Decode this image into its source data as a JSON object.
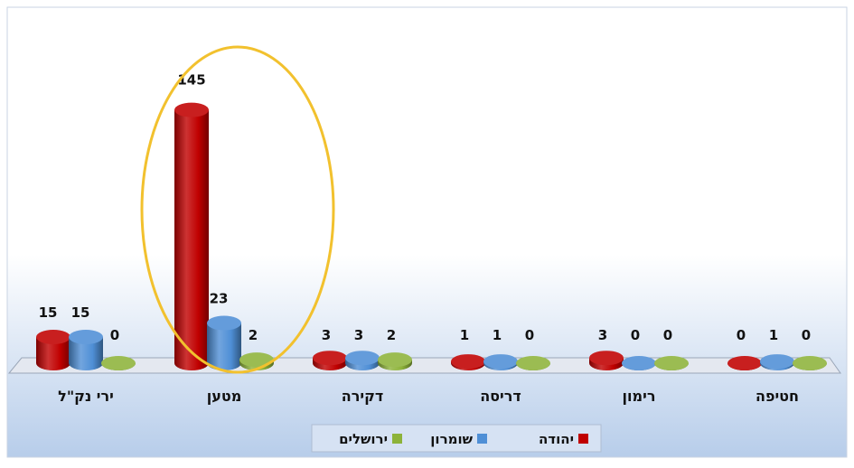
{
  "chart_data": {
    "type": "bar",
    "categories": [
      "ירי נק\"ל",
      "מטען",
      "דקירה",
      "דריסה",
      "רימון",
      "חטיפה"
    ],
    "series": [
      {
        "name": "יהודה",
        "color": "#c00000",
        "values": [
          15,
          145,
          3,
          1,
          3,
          0
        ]
      },
      {
        "name": "שומרון",
        "color": "#4f8fd6",
        "values": [
          15,
          23,
          3,
          1,
          0,
          1
        ]
      },
      {
        "name": "ירושלים",
        "color": "#8db33a",
        "values": [
          0,
          2,
          2,
          0,
          0,
          0
        ]
      }
    ],
    "ylim": [
      0,
      150
    ],
    "grid": false,
    "legend_position": "bottom",
    "highlight": {
      "category": "מטען",
      "color": "#f2c12e"
    },
    "colors": {
      "background_top": "#ffffff",
      "background_bottom": "#b7cdea",
      "floor": "#e4e8f0"
    }
  }
}
